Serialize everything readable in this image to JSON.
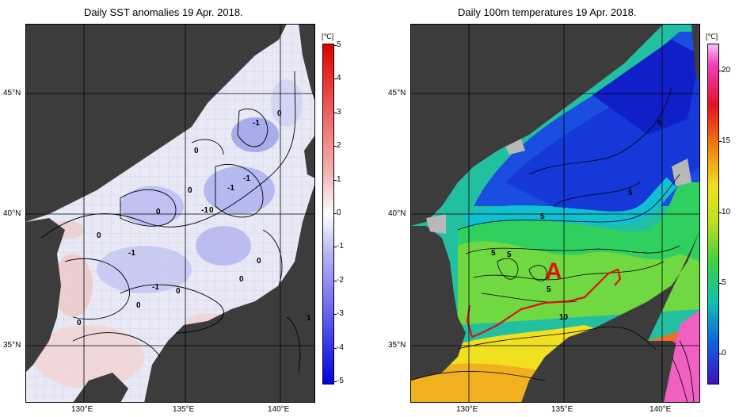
{
  "left_panel": {
    "title": "Daily SST anomalies 19 Apr. 2018.",
    "unit": "[℃]",
    "colorbar_ticks": [
      "5",
      "4",
      "3",
      "2",
      "1",
      "0",
      "-1",
      "-2",
      "-3",
      "-4",
      "-5"
    ],
    "lat_labels": [
      "45°N",
      "40°N",
      "35°N"
    ],
    "lon_labels": [
      "130°E",
      "135°E",
      "140°E"
    ],
    "contour_labels": [
      "0",
      "-1",
      "0",
      "-1",
      "0",
      "0",
      "0",
      "-1",
      "0",
      "-1",
      "-1",
      "0",
      "0",
      "-1",
      "0",
      "0",
      "-1",
      "0",
      "0",
      "1"
    ],
    "colors": {
      "land": "#3c3c3c",
      "positive": "#e04040",
      "negative": "#3040e0",
      "neutral": "#ffffff"
    }
  },
  "right_panel": {
    "title": "Daily 100m temperatures 19 Apr. 2018.",
    "unit": "[℃]",
    "colorbar_ticks": [
      "20",
      "15",
      "10",
      "5",
      "0"
    ],
    "lat_labels": [
      "45°N",
      "40°N",
      "35°N"
    ],
    "lon_labels": [
      "130°E",
      "135°E",
      "140°E"
    ],
    "contour_labels": [
      "5",
      "5",
      "5",
      "5",
      "5",
      "5",
      "10"
    ],
    "annotation": "A",
    "colors": {
      "land": "#3c3c3c",
      "annotation": "#e01010",
      "front_line": "#e01010"
    }
  }
}
